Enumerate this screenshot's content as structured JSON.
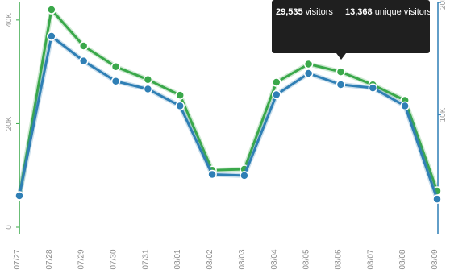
{
  "chart_data": {
    "type": "line",
    "categories": [
      "07/27",
      "07/28",
      "07/29",
      "07/30",
      "07/31",
      "08/01",
      "08/02",
      "08/03",
      "08/04",
      "08/05",
      "08/06",
      "08/07",
      "08/08",
      "08/09"
    ],
    "series": [
      {
        "values": [
          6000,
          42000,
          35000,
          31000,
          28500,
          25500,
          11000,
          11200,
          28000,
          31500,
          30000,
          27500,
          24500,
          7000
        ],
        "axis": "left",
        "color": "#3aa84a"
      },
      {
        "values": [
          2800,
          17000,
          14800,
          13000,
          12300,
          10800,
          4700,
          4600,
          11800,
          13700,
          12700,
          12400,
          10800,
          2500
        ],
        "axis": "right",
        "color": "#2f7fb5"
      }
    ],
    "y_left": {
      "ylim": [
        0,
        42000
      ],
      "ticks": [
        0,
        20000,
        40000
      ],
      "tick_labels": [
        "0",
        "20K",
        "40K"
      ]
    },
    "y_right": {
      "ylim": [
        0,
        17000
      ],
      "ticks": [
        10000,
        20000,
        30000
      ],
      "tick_labels": [
        "10K",
        "20K",
        "30K"
      ]
    },
    "tooltip": {
      "value_a": "29,535",
      "label_a": "visitors",
      "value_b": "13,368",
      "label_b": "unique visitors"
    },
    "grid": false,
    "legend": "none"
  }
}
